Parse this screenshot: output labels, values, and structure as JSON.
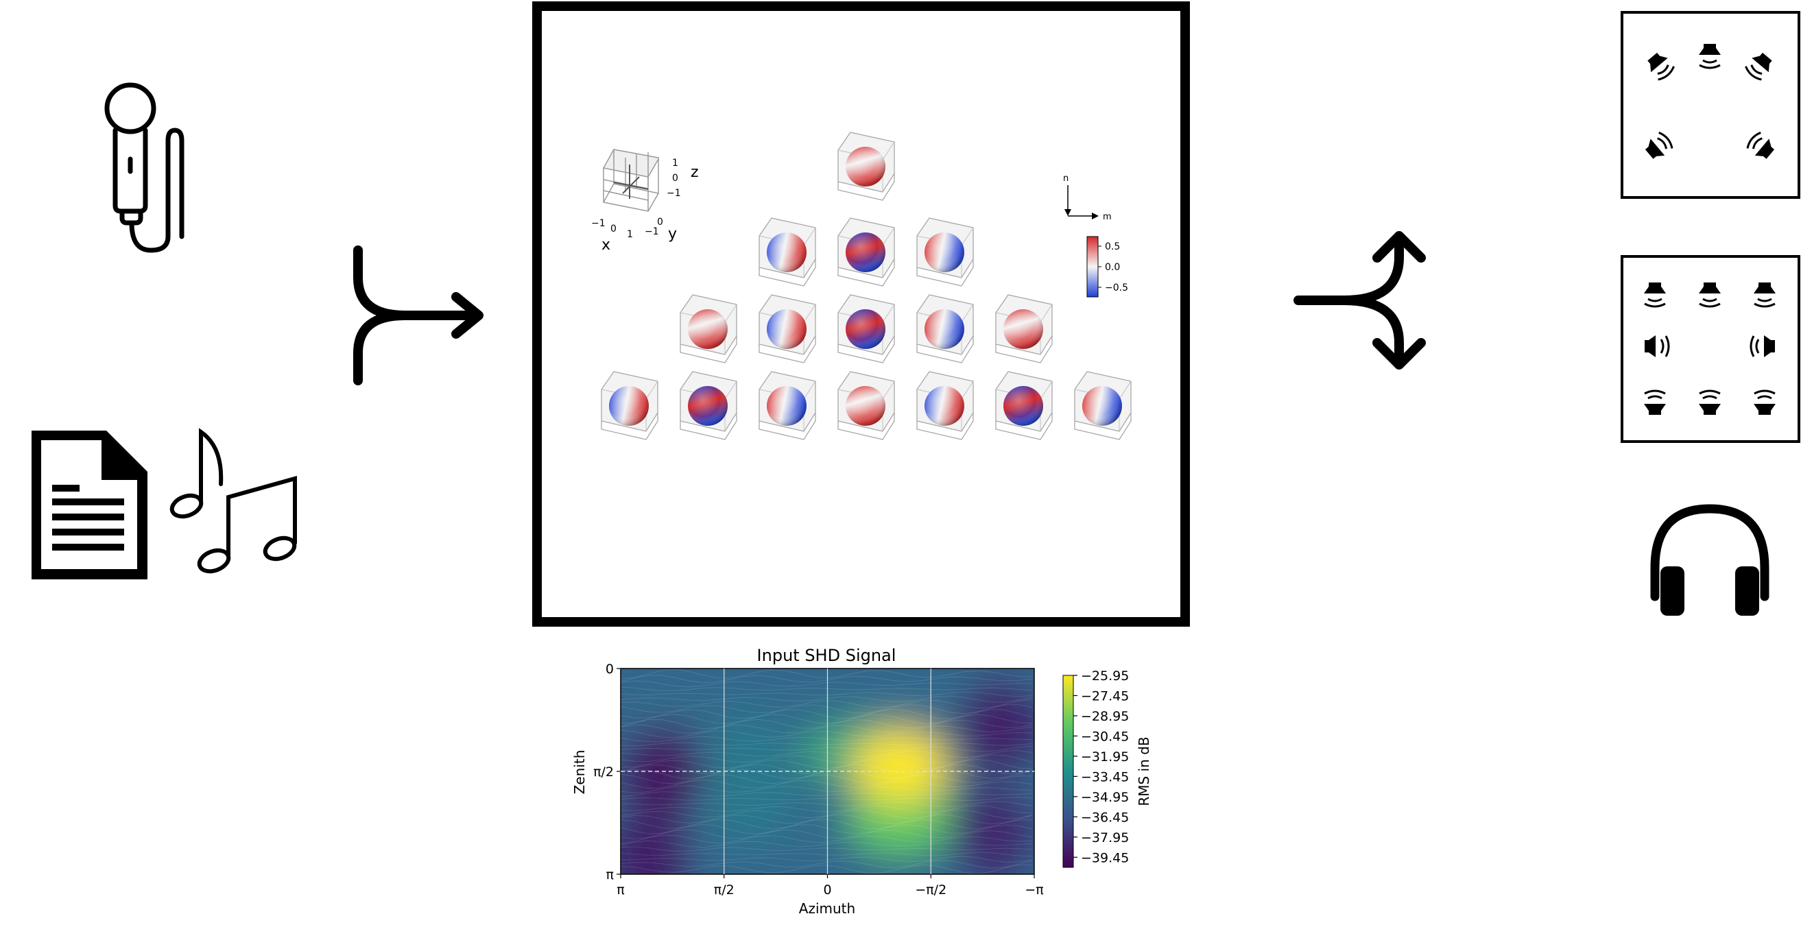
{
  "sh_panel": {
    "axes": {
      "z": "z",
      "x": "x",
      "y": "y"
    },
    "axis_ticks": {
      "z": [
        "1",
        "0",
        "−1"
      ],
      "x": [
        "−1",
        "0",
        "1"
      ],
      "y": [
        "0",
        "−1"
      ]
    },
    "direction_labels": {
      "n": "n",
      "m": "m"
    },
    "colorbar_ticks": [
      "0.5",
      "0.0",
      "−0.5"
    ],
    "colors": {
      "positive": "#d62728",
      "neutral": "#f2f2f2",
      "negative": "#1f3fd6"
    }
  },
  "chart_data": {
    "type": "heatmap",
    "title": "Input SHD Signal",
    "xlabel": "Azimuth",
    "ylabel": "Zenith",
    "x_ticks": [
      "π",
      "π/2",
      "0",
      "−π/2",
      "−π"
    ],
    "y_ticks": [
      "0",
      "π/2",
      "π"
    ],
    "colorbar_label": "RMS in dB",
    "colorbar_ticks": [
      "−25.95",
      "−27.45",
      "−28.95",
      "−30.45",
      "−31.95",
      "−33.45",
      "−34.95",
      "−36.45",
      "−37.95",
      "−39.45"
    ],
    "value_range": [
      -40.2,
      -25.95
    ],
    "peaks": [
      {
        "azimuth": -1.1,
        "zenith": 1.5,
        "value": -25.95
      },
      {
        "azimuth": -1.1,
        "zenith": 2.3,
        "value": -29.5
      },
      {
        "azimuth": -0.5,
        "zenith": 1.3,
        "value": -31.5
      },
      {
        "azimuth": 1.2,
        "zenith": 1.7,
        "value": -34.5
      }
    ],
    "troughs": [
      {
        "azimuth": 2.5,
        "zenith": 1.6,
        "value": -39.45
      },
      {
        "azimuth": -2.6,
        "zenith": 0.9,
        "value": -39.0
      },
      {
        "azimuth": -2.5,
        "zenith": 2.5,
        "value": -38.5
      },
      {
        "azimuth": 2.7,
        "zenith": 2.9,
        "value": -39.0
      }
    ],
    "colormap": [
      "#440154",
      "#3b528b",
      "#21918c",
      "#5ec962",
      "#fde725"
    ]
  }
}
